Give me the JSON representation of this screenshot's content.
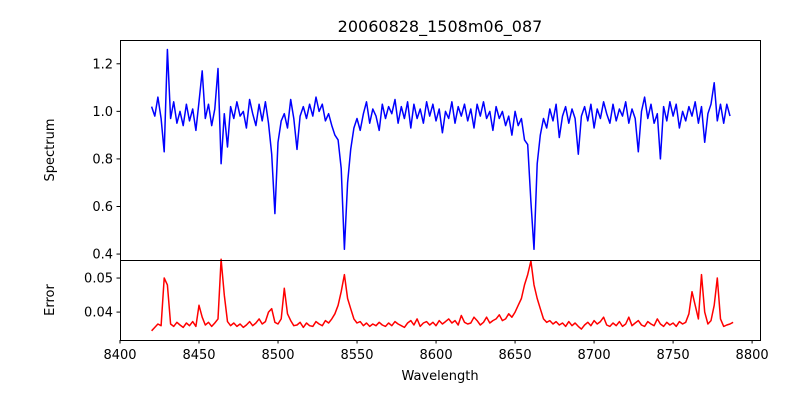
{
  "chart_data": [
    {
      "type": "line",
      "title": "20060828_1508m06_087",
      "ylabel": "Spectrum",
      "xlabel": "",
      "xlim": [
        8400,
        8805
      ],
      "ylim": [
        0.375,
        1.3
      ],
      "yticks": [
        0.4,
        0.6,
        0.8,
        1.0,
        1.2
      ],
      "ytick_labels": [
        "0.4",
        "0.6",
        "0.8",
        "1.0",
        "1.2"
      ],
      "color": "#0000ff",
      "x_start": 8420,
      "x_step": 2,
      "values": [
        1.02,
        0.98,
        1.06,
        0.97,
        0.83,
        1.26,
        0.97,
        1.04,
        0.95,
        1.0,
        0.94,
        1.03,
        0.96,
        1.01,
        0.92,
        1.04,
        1.17,
        0.97,
        1.03,
        0.94,
        1.01,
        1.18,
        0.78,
        0.99,
        0.85,
        1.02,
        0.97,
        1.04,
        0.98,
        1.0,
        0.93,
        1.05,
        0.99,
        0.94,
        1.03,
        0.96,
        1.04,
        0.95,
        0.82,
        0.57,
        0.87,
        0.96,
        0.99,
        0.93,
        1.05,
        0.97,
        0.84,
        0.98,
        1.02,
        0.97,
        1.03,
        0.98,
        1.06,
        1.0,
        1.03,
        0.96,
        0.99,
        0.94,
        0.9,
        0.88,
        0.76,
        0.42,
        0.7,
        0.84,
        0.93,
        0.97,
        0.92,
        0.99,
        1.04,
        0.95,
        1.01,
        0.98,
        0.92,
        1.03,
        0.97,
        1.02,
        0.99,
        1.05,
        0.95,
        1.02,
        0.97,
        1.04,
        0.93,
        1.03,
        0.97,
        1.01,
        0.95,
        1.04,
        0.98,
        1.03,
        0.96,
        1.01,
        0.91,
        1.0,
        0.97,
        1.04,
        0.95,
        1.02,
        0.98,
        1.03,
        0.96,
        1.01,
        0.93,
        1.03,
        0.98,
        1.04,
        0.97,
        1.0,
        0.92,
        1.02,
        0.97,
        1.0,
        0.94,
        0.98,
        0.9,
        1.0,
        0.94,
        0.97,
        0.88,
        0.86,
        0.62,
        0.42,
        0.78,
        0.9,
        0.97,
        0.93,
        1.01,
        0.96,
        1.03,
        0.89,
        0.98,
        1.02,
        0.95,
        1.01,
        0.97,
        0.82,
        0.98,
        1.02,
        0.96,
        1.03,
        0.93,
        1.01,
        0.97,
        1.04,
        0.99,
        0.95,
        1.03,
        0.96,
        1.01,
        0.98,
        1.04,
        0.95,
        1.01,
        0.97,
        0.83,
        1.0,
        1.06,
        0.97,
        1.03,
        0.95,
        0.99,
        0.8,
        1.02,
        0.96,
        1.04,
        0.98,
        1.03,
        0.93,
        1.0,
        0.96,
        1.02,
        0.98,
        1.04,
        0.95,
        1.02,
        0.87,
        0.99,
        1.03,
        1.12,
        0.96,
        1.03,
        0.95,
        1.03,
        0.98
      ]
    },
    {
      "type": "line",
      "title": "",
      "ylabel": "Error",
      "xlabel": "Wavelength",
      "xlim": [
        8400,
        8805
      ],
      "ylim": [
        0.0318,
        0.0553
      ],
      "yticks": [
        0.04,
        0.05
      ],
      "ytick_labels": [
        "0.04",
        "0.05"
      ],
      "xticks": [
        8400,
        8450,
        8500,
        8550,
        8600,
        8650,
        8700,
        8750,
        8800
      ],
      "xtick_labels": [
        "8400",
        "8450",
        "8500",
        "8550",
        "8600",
        "8650",
        "8700",
        "8750",
        "8800"
      ],
      "color": "#ff0000",
      "x_start": 8420,
      "x_step": 2,
      "values": [
        0.0345,
        0.0355,
        0.0365,
        0.036,
        0.05,
        0.048,
        0.0365,
        0.0358,
        0.037,
        0.0362,
        0.0355,
        0.0368,
        0.036,
        0.0372,
        0.0358,
        0.042,
        0.0385,
        0.0362,
        0.037,
        0.0358,
        0.0368,
        0.038,
        0.0555,
        0.045,
        0.0372,
        0.036,
        0.0368,
        0.0358,
        0.0365,
        0.0355,
        0.0362,
        0.0372,
        0.036,
        0.0368,
        0.038,
        0.0365,
        0.0372,
        0.04,
        0.041,
        0.037,
        0.0365,
        0.038,
        0.047,
        0.0395,
        0.0375,
        0.036,
        0.0362,
        0.037,
        0.0355,
        0.0368,
        0.036,
        0.0358,
        0.0372,
        0.0365,
        0.036,
        0.0375,
        0.0368,
        0.038,
        0.0395,
        0.042,
        0.046,
        0.051,
        0.044,
        0.041,
        0.038,
        0.0368,
        0.0372,
        0.036,
        0.0368,
        0.0358,
        0.0365,
        0.036,
        0.037,
        0.0362,
        0.0358,
        0.0368,
        0.036,
        0.0372,
        0.0365,
        0.036,
        0.0355,
        0.0368,
        0.0375,
        0.0362,
        0.038,
        0.0358,
        0.0368,
        0.0372,
        0.0362,
        0.037,
        0.036,
        0.0375,
        0.0365,
        0.0372,
        0.038,
        0.0368,
        0.0375,
        0.0362,
        0.039,
        0.037,
        0.0365,
        0.0368,
        0.0385,
        0.0375,
        0.0362,
        0.037,
        0.0385,
        0.0368,
        0.0375,
        0.038,
        0.0392,
        0.0375,
        0.038,
        0.0395,
        0.0385,
        0.04,
        0.042,
        0.044,
        0.048,
        0.051,
        0.055,
        0.048,
        0.044,
        0.041,
        0.038,
        0.037,
        0.0375,
        0.0365,
        0.0372,
        0.0362,
        0.0368,
        0.0358,
        0.0372,
        0.036,
        0.0368,
        0.0358,
        0.035,
        0.0362,
        0.037,
        0.036,
        0.0375,
        0.0365,
        0.0372,
        0.0385,
        0.0362,
        0.0358,
        0.0368,
        0.036,
        0.0372,
        0.0358,
        0.0365,
        0.0385,
        0.036,
        0.0368,
        0.0375,
        0.0362,
        0.0358,
        0.0372,
        0.0365,
        0.036,
        0.038,
        0.0365,
        0.0358,
        0.037,
        0.0362,
        0.0368,
        0.0358,
        0.0372,
        0.0365,
        0.037,
        0.0395,
        0.046,
        0.042,
        0.038,
        0.051,
        0.04,
        0.0365,
        0.0375,
        0.042,
        0.05,
        0.038,
        0.0358,
        0.0362,
        0.0365,
        0.037
      ]
    }
  ]
}
